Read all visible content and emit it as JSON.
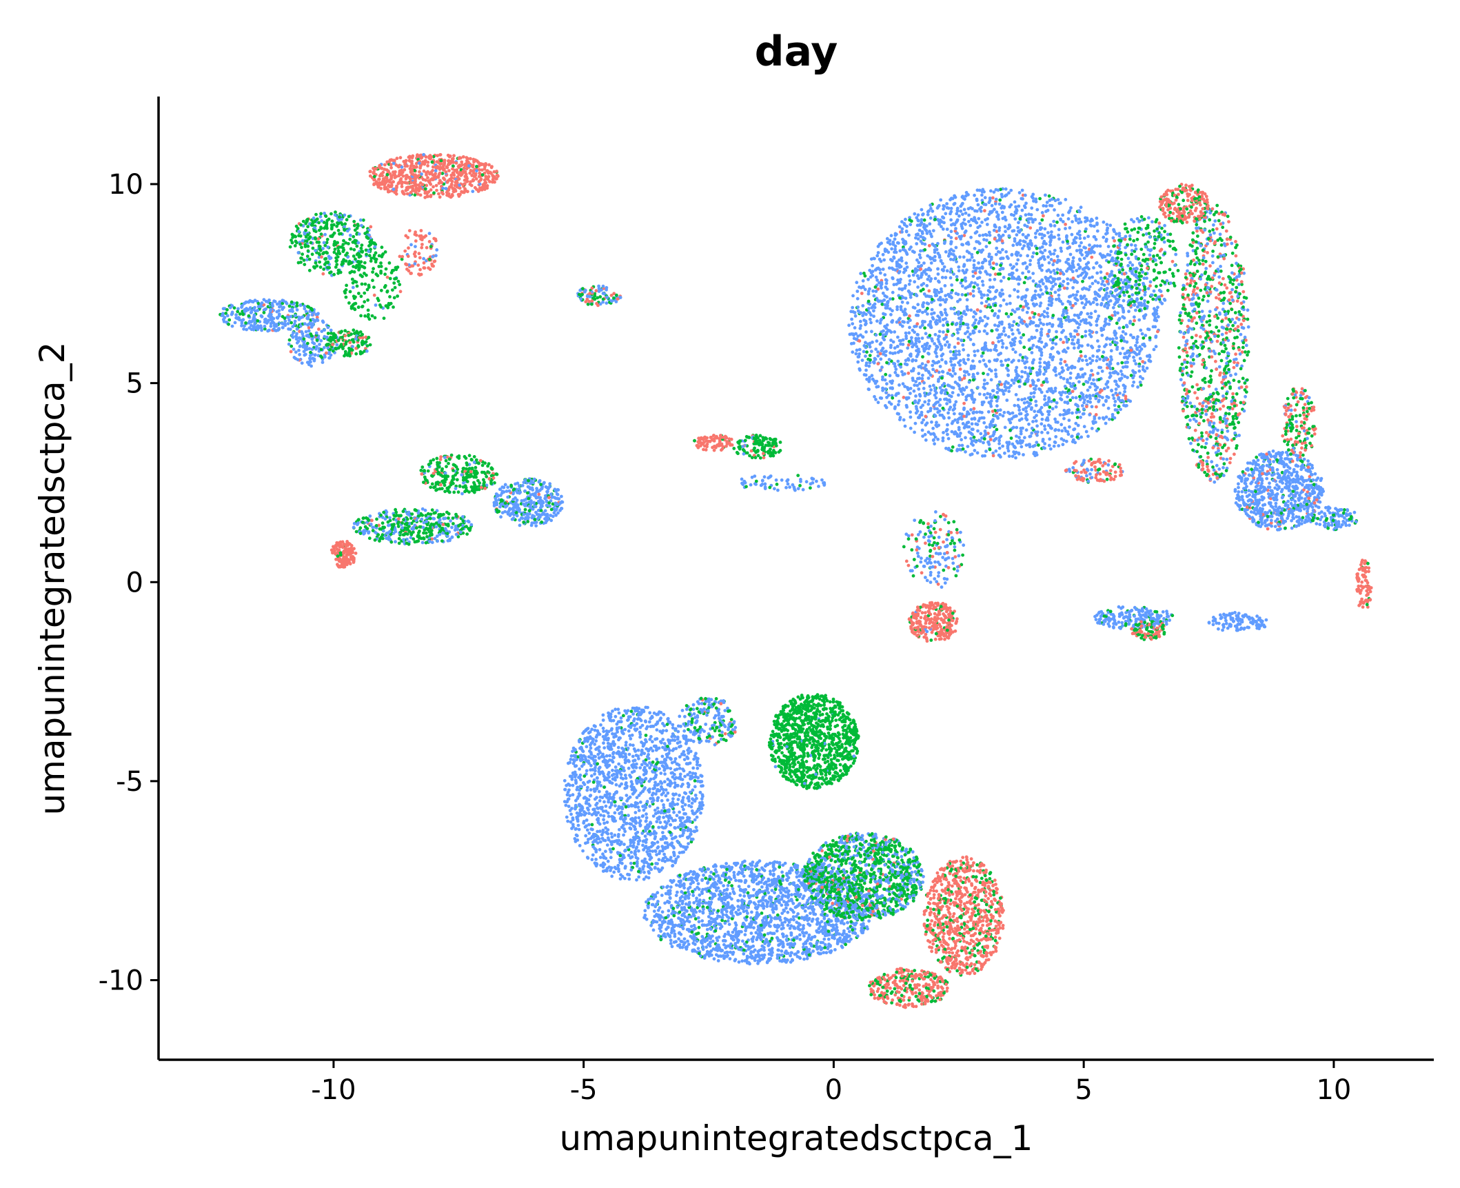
{
  "chart_data": {
    "type": "scatter",
    "title": "day",
    "xlabel": "umapunintegratedsctpca_1",
    "ylabel": "umapunintegratedsctpca_2",
    "xlim": [
      -13.5,
      12
    ],
    "ylim": [
      -12,
      12.2
    ],
    "xticks": [
      -10,
      -5,
      0,
      5,
      10
    ],
    "yticks": [
      -10,
      -5,
      0,
      5,
      10
    ],
    "xtick_labels": [
      "-10",
      "-5",
      "0",
      "5",
      "10"
    ],
    "ytick_labels": [
      "-10",
      "-5",
      "0",
      "5",
      "10"
    ],
    "legend": "none",
    "grid": false,
    "series_colors": [
      "#F8766D",
      "#00BA38",
      "#619CFF"
    ],
    "clusters": [
      {
        "cx": 3.4,
        "cy": 6.5,
        "rx": 3.1,
        "ry": 3.4,
        "n": 3500,
        "w": [
          0.03,
          0.06,
          0.91
        ]
      },
      {
        "cx": 7.6,
        "cy": 6.0,
        "rx": 0.7,
        "ry": 3.5,
        "n": 900,
        "w": [
          0.28,
          0.42,
          0.3
        ]
      },
      {
        "cx": 7.0,
        "cy": 9.5,
        "rx": 0.5,
        "ry": 0.5,
        "n": 200,
        "w": [
          0.7,
          0.3,
          0.0
        ]
      },
      {
        "cx": 6.2,
        "cy": 8.0,
        "rx": 0.7,
        "ry": 1.2,
        "n": 250,
        "w": [
          0.05,
          0.6,
          0.35
        ]
      },
      {
        "cx": 8.9,
        "cy": 2.3,
        "rx": 0.9,
        "ry": 1.0,
        "n": 700,
        "w": [
          0.05,
          0.07,
          0.88
        ]
      },
      {
        "cx": 9.3,
        "cy": 4.0,
        "rx": 0.35,
        "ry": 0.9,
        "n": 150,
        "w": [
          0.45,
          0.4,
          0.15
        ]
      },
      {
        "cx": 5.2,
        "cy": 2.8,
        "rx": 0.6,
        "ry": 0.3,
        "n": 100,
        "w": [
          0.6,
          0.15,
          0.25
        ]
      },
      {
        "cx": 10.0,
        "cy": 1.6,
        "rx": 0.5,
        "ry": 0.3,
        "n": 100,
        "w": [
          0.0,
          0.2,
          0.8
        ]
      },
      {
        "cx": -8.0,
        "cy": 10.2,
        "rx": 1.3,
        "ry": 0.55,
        "n": 650,
        "w": [
          0.92,
          0.04,
          0.04
        ]
      },
      {
        "cx": -8.3,
        "cy": 8.3,
        "rx": 0.4,
        "ry": 0.6,
        "n": 80,
        "w": [
          0.8,
          0.1,
          0.1
        ]
      },
      {
        "cx": -10.0,
        "cy": 8.5,
        "rx": 0.9,
        "ry": 0.8,
        "n": 350,
        "w": [
          0.05,
          0.75,
          0.2
        ]
      },
      {
        "cx": -11.3,
        "cy": 6.7,
        "rx": 1.0,
        "ry": 0.4,
        "n": 300,
        "w": [
          0.02,
          0.18,
          0.8
        ]
      },
      {
        "cx": -10.4,
        "cy": 6.0,
        "rx": 0.5,
        "ry": 0.6,
        "n": 160,
        "w": [
          0.05,
          0.2,
          0.75
        ]
      },
      {
        "cx": -9.7,
        "cy": 6.0,
        "rx": 0.45,
        "ry": 0.35,
        "n": 130,
        "w": [
          0.15,
          0.8,
          0.05
        ]
      },
      {
        "cx": -9.2,
        "cy": 7.5,
        "rx": 0.6,
        "ry": 1.0,
        "n": 130,
        "w": [
          0.05,
          0.9,
          0.05
        ]
      },
      {
        "cx": -4.7,
        "cy": 7.2,
        "rx": 0.45,
        "ry": 0.25,
        "n": 90,
        "w": [
          0.2,
          0.35,
          0.45
        ]
      },
      {
        "cx": -7.5,
        "cy": 2.7,
        "rx": 0.8,
        "ry": 0.5,
        "n": 250,
        "w": [
          0.08,
          0.8,
          0.12
        ]
      },
      {
        "cx": -6.1,
        "cy": 2.0,
        "rx": 0.7,
        "ry": 0.6,
        "n": 350,
        "w": [
          0.02,
          0.2,
          0.78
        ]
      },
      {
        "cx": -8.4,
        "cy": 1.4,
        "rx": 1.2,
        "ry": 0.45,
        "n": 400,
        "w": [
          0.03,
          0.6,
          0.37
        ]
      },
      {
        "cx": -9.8,
        "cy": 0.7,
        "rx": 0.25,
        "ry": 0.35,
        "n": 130,
        "w": [
          0.95,
          0.05,
          0.0
        ]
      },
      {
        "cx": -1.5,
        "cy": 3.4,
        "rx": 0.5,
        "ry": 0.3,
        "n": 120,
        "w": [
          0.1,
          0.85,
          0.05
        ]
      },
      {
        "cx": -2.4,
        "cy": 3.5,
        "rx": 0.4,
        "ry": 0.2,
        "n": 80,
        "w": [
          0.95,
          0.05,
          0.0
        ]
      },
      {
        "cx": -1.0,
        "cy": 2.5,
        "rx": 1.0,
        "ry": 0.2,
        "n": 60,
        "w": [
          0.0,
          0.05,
          0.95
        ]
      },
      {
        "cx": 2.0,
        "cy": -1.0,
        "rx": 0.5,
        "ry": 0.5,
        "n": 250,
        "w": [
          0.9,
          0.08,
          0.02
        ]
      },
      {
        "cx": 2.0,
        "cy": 0.8,
        "rx": 0.6,
        "ry": 1.0,
        "n": 150,
        "w": [
          0.2,
          0.3,
          0.5
        ]
      },
      {
        "cx": 6.0,
        "cy": -0.9,
        "rx": 0.8,
        "ry": 0.3,
        "n": 180,
        "w": [
          0.0,
          0.1,
          0.9
        ]
      },
      {
        "cx": 6.3,
        "cy": -1.2,
        "rx": 0.35,
        "ry": 0.25,
        "n": 80,
        "w": [
          0.45,
          0.55,
          0.0
        ]
      },
      {
        "cx": 8.1,
        "cy": -1.0,
        "rx": 0.6,
        "ry": 0.25,
        "n": 100,
        "w": [
          0.0,
          0.0,
          1.0
        ]
      },
      {
        "cx": 10.6,
        "cy": -0.1,
        "rx": 0.15,
        "ry": 0.7,
        "n": 80,
        "w": [
          0.95,
          0.05,
          0.0
        ]
      },
      {
        "cx": -4.0,
        "cy": -5.3,
        "rx": 1.4,
        "ry": 2.2,
        "n": 1500,
        "w": [
          0.0,
          0.04,
          0.96
        ]
      },
      {
        "cx": -1.5,
        "cy": -8.3,
        "rx": 2.3,
        "ry": 1.3,
        "n": 1800,
        "w": [
          0.0,
          0.08,
          0.92
        ]
      },
      {
        "cx": -0.4,
        "cy": -4.0,
        "rx": 0.9,
        "ry": 1.2,
        "n": 1000,
        "w": [
          0.0,
          0.97,
          0.03
        ]
      },
      {
        "cx": 0.6,
        "cy": -7.4,
        "rx": 1.2,
        "ry": 1.1,
        "n": 1200,
        "w": [
          0.04,
          0.6,
          0.36
        ]
      },
      {
        "cx": 2.6,
        "cy": -8.4,
        "rx": 0.8,
        "ry": 1.5,
        "n": 800,
        "w": [
          0.8,
          0.2,
          0.0
        ]
      },
      {
        "cx": 1.5,
        "cy": -10.2,
        "rx": 0.8,
        "ry": 0.5,
        "n": 300,
        "w": [
          0.75,
          0.25,
          0.0
        ]
      },
      {
        "cx": -2.5,
        "cy": -3.5,
        "rx": 0.6,
        "ry": 0.6,
        "n": 180,
        "w": [
          0.05,
          0.35,
          0.6
        ]
      }
    ]
  }
}
